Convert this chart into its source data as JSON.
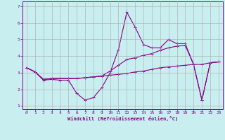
{
  "xlabel": "Windchill (Refroidissement éolien,°C)",
  "bg_color": "#c8eef0",
  "grid_color": "#aaaaaa",
  "line_color": "#880088",
  "xlim": [
    -0.5,
    23.5
  ],
  "ylim": [
    0.8,
    7.3
  ],
  "xticks": [
    0,
    1,
    2,
    3,
    4,
    5,
    6,
    7,
    8,
    9,
    10,
    11,
    12,
    13,
    14,
    15,
    16,
    17,
    18,
    19,
    20,
    21,
    22,
    23
  ],
  "yticks": [
    1,
    2,
    3,
    4,
    5,
    6,
    7
  ],
  "line1_x": [
    0,
    1,
    2,
    3,
    4,
    5,
    6,
    7,
    8,
    9,
    10,
    11,
    12,
    13,
    14,
    15,
    16,
    17,
    18,
    19,
    20,
    21,
    22,
    23
  ],
  "line1_y": [
    3.3,
    3.05,
    2.55,
    2.6,
    2.55,
    2.55,
    1.75,
    1.35,
    1.5,
    2.1,
    3.0,
    4.4,
    6.65,
    5.75,
    4.7,
    4.5,
    4.5,
    5.0,
    4.75,
    4.75,
    3.5,
    1.35,
    3.6,
    3.65
  ],
  "line2_x": [
    0,
    1,
    2,
    3,
    4,
    5,
    6,
    7,
    8,
    9,
    10,
    11,
    12,
    13,
    14,
    15,
    16,
    17,
    18,
    19,
    20,
    21,
    22,
    23
  ],
  "line2_y": [
    3.3,
    3.05,
    2.6,
    2.65,
    2.65,
    2.65,
    2.65,
    2.7,
    2.75,
    2.8,
    2.85,
    2.9,
    2.95,
    3.05,
    3.1,
    3.2,
    3.3,
    3.35,
    3.4,
    3.45,
    3.5,
    3.5,
    3.6,
    3.65
  ],
  "line3_x": [
    0,
    1,
    2,
    3,
    4,
    5,
    6,
    7,
    8,
    9,
    10,
    11,
    12,
    13,
    14,
    15,
    16,
    17,
    18,
    19,
    20,
    21,
    22,
    23
  ],
  "line3_y": [
    3.3,
    3.05,
    2.6,
    2.65,
    2.65,
    2.65,
    2.65,
    2.7,
    2.75,
    2.8,
    3.1,
    3.45,
    3.8,
    3.9,
    4.05,
    4.15,
    4.35,
    4.5,
    4.6,
    4.65,
    3.5,
    1.35,
    3.6,
    3.65
  ]
}
